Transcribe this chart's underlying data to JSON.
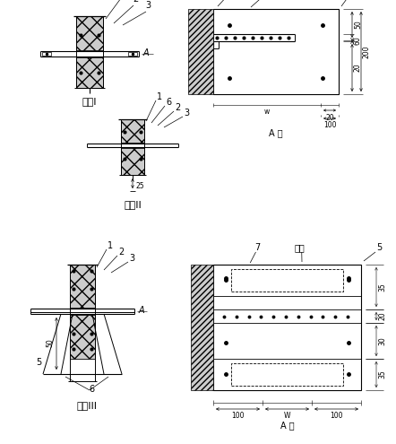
{
  "bg_color": "#ffffff",
  "title1": "方案I",
  "title2": "方案II",
  "title3": "方案III",
  "qiangjian": "墙间",
  "A_xiang": "A 向",
  "font_size": 7,
  "small_font": 5.5
}
